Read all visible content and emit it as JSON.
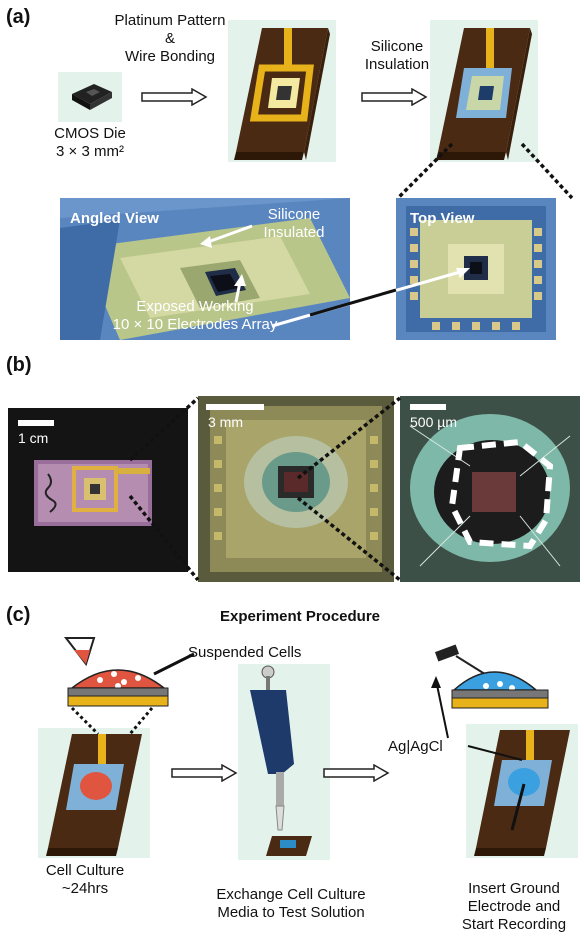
{
  "panel_a": {
    "label": "(a)",
    "cmos_die_label_1": "CMOS Die",
    "cmos_die_label_2": "3 × 3 mm²",
    "step1_line1": "Platinum Pattern",
    "step1_line2": "&",
    "step1_line3": "Wire Bonding",
    "step2_line1": "Silicone",
    "step2_line2": "Insulation",
    "angled_view": "Angled View",
    "top_view": "Top View",
    "silicone_1": "Silicone",
    "silicone_2": "Insulated",
    "exposed_1": "Exposed Working",
    "exposed_2": "10 × 10 Electrodes Array"
  },
  "panel_b": {
    "label": "(b)",
    "scale_1": "1 cm",
    "scale_2": "3 mm",
    "scale_3": "500 µm"
  },
  "panel_c": {
    "label": "(c)",
    "title": "Experiment Procedure",
    "suspended_cells": "Suspended Cells",
    "ag_agcl": "Ag|AgCl",
    "step1_1": "Cell Culture",
    "step1_2": "~24hrs",
    "step2_1": "Exchange Cell Culture",
    "step2_2": "Media to Test Solution",
    "step3_1": "Insert Ground",
    "step3_2": "Electrode and",
    "step3_3": "Start Recording"
  },
  "colors": {
    "chip_brown": "#4a2a12",
    "gold": "#e8b31a",
    "silicone_blue": "#4a7fc0",
    "panel_bg": "#e3f3ec",
    "cell_red": "#e0553f",
    "solution_blue": "#3aa0e0"
  }
}
